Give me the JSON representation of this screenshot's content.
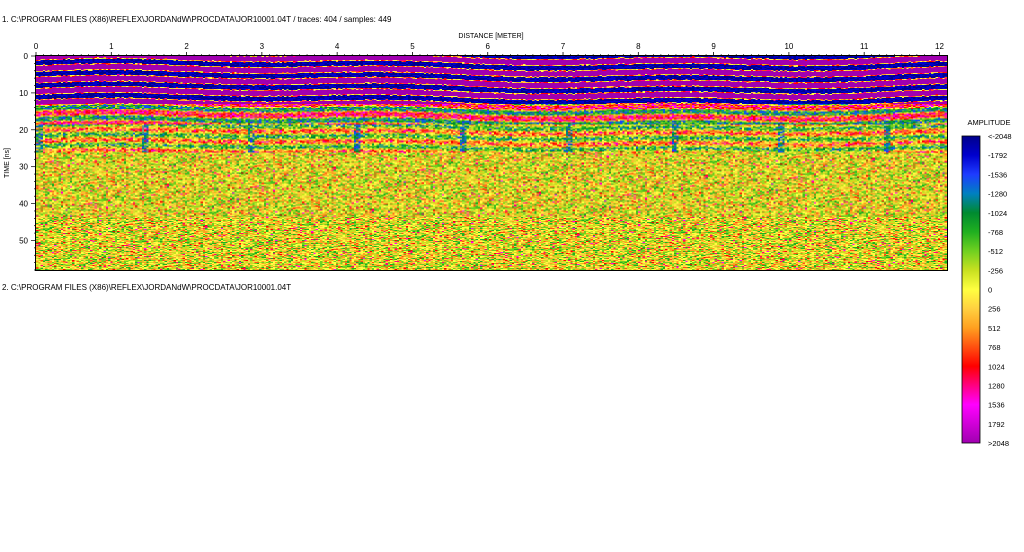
{
  "header": {
    "profile1": "1. C:\\PROGRAM FILES (X86)\\REFLEX\\JORDANdW\\PROCDATA\\JOR10001.04T / traces: 404 / samples: 449",
    "profile2": "2. C:\\PROGRAM FILES (X86)\\REFLEX\\JORDANdW\\PROCDATA\\JOR10001.04T"
  },
  "chart_data": {
    "type": "heatmap",
    "title": "",
    "xlabel": "DISTANCE [METER]",
    "ylabel": "TIME [ns]",
    "xlim": [
      0,
      12.1
    ],
    "ylim": [
      0,
      58
    ],
    "x_ticks": [
      "0",
      "1",
      "2",
      "3",
      "4",
      "5",
      "6",
      "7",
      "8",
      "9",
      "10",
      "11",
      "12"
    ],
    "y_ticks": [
      "0",
      "10",
      "20",
      "30",
      "40",
      "50"
    ],
    "traces": 404,
    "samples": 449,
    "colorbar": {
      "label": "AMPLITUDE",
      "ticks": [
        "<-2048",
        "-1792",
        "-1536",
        "-1280",
        "-1024",
        "-768",
        "-512",
        "-256",
        "0",
        "256",
        "512",
        "768",
        "1024",
        "1280",
        "1536",
        "1792",
        ">2048"
      ],
      "colors": [
        "#00008b",
        "#0000cd",
        "#1e3cff",
        "#0080c0",
        "#008a30",
        "#20b020",
        "#70d020",
        "#c8e020",
        "#ffff40",
        "#ffd040",
        "#ffa020",
        "#ff5010",
        "#ff0000",
        "#ff0080",
        "#ff00ff",
        "#d000d8",
        "#a000b0"
      ]
    },
    "grid": false,
    "legend": "right"
  }
}
